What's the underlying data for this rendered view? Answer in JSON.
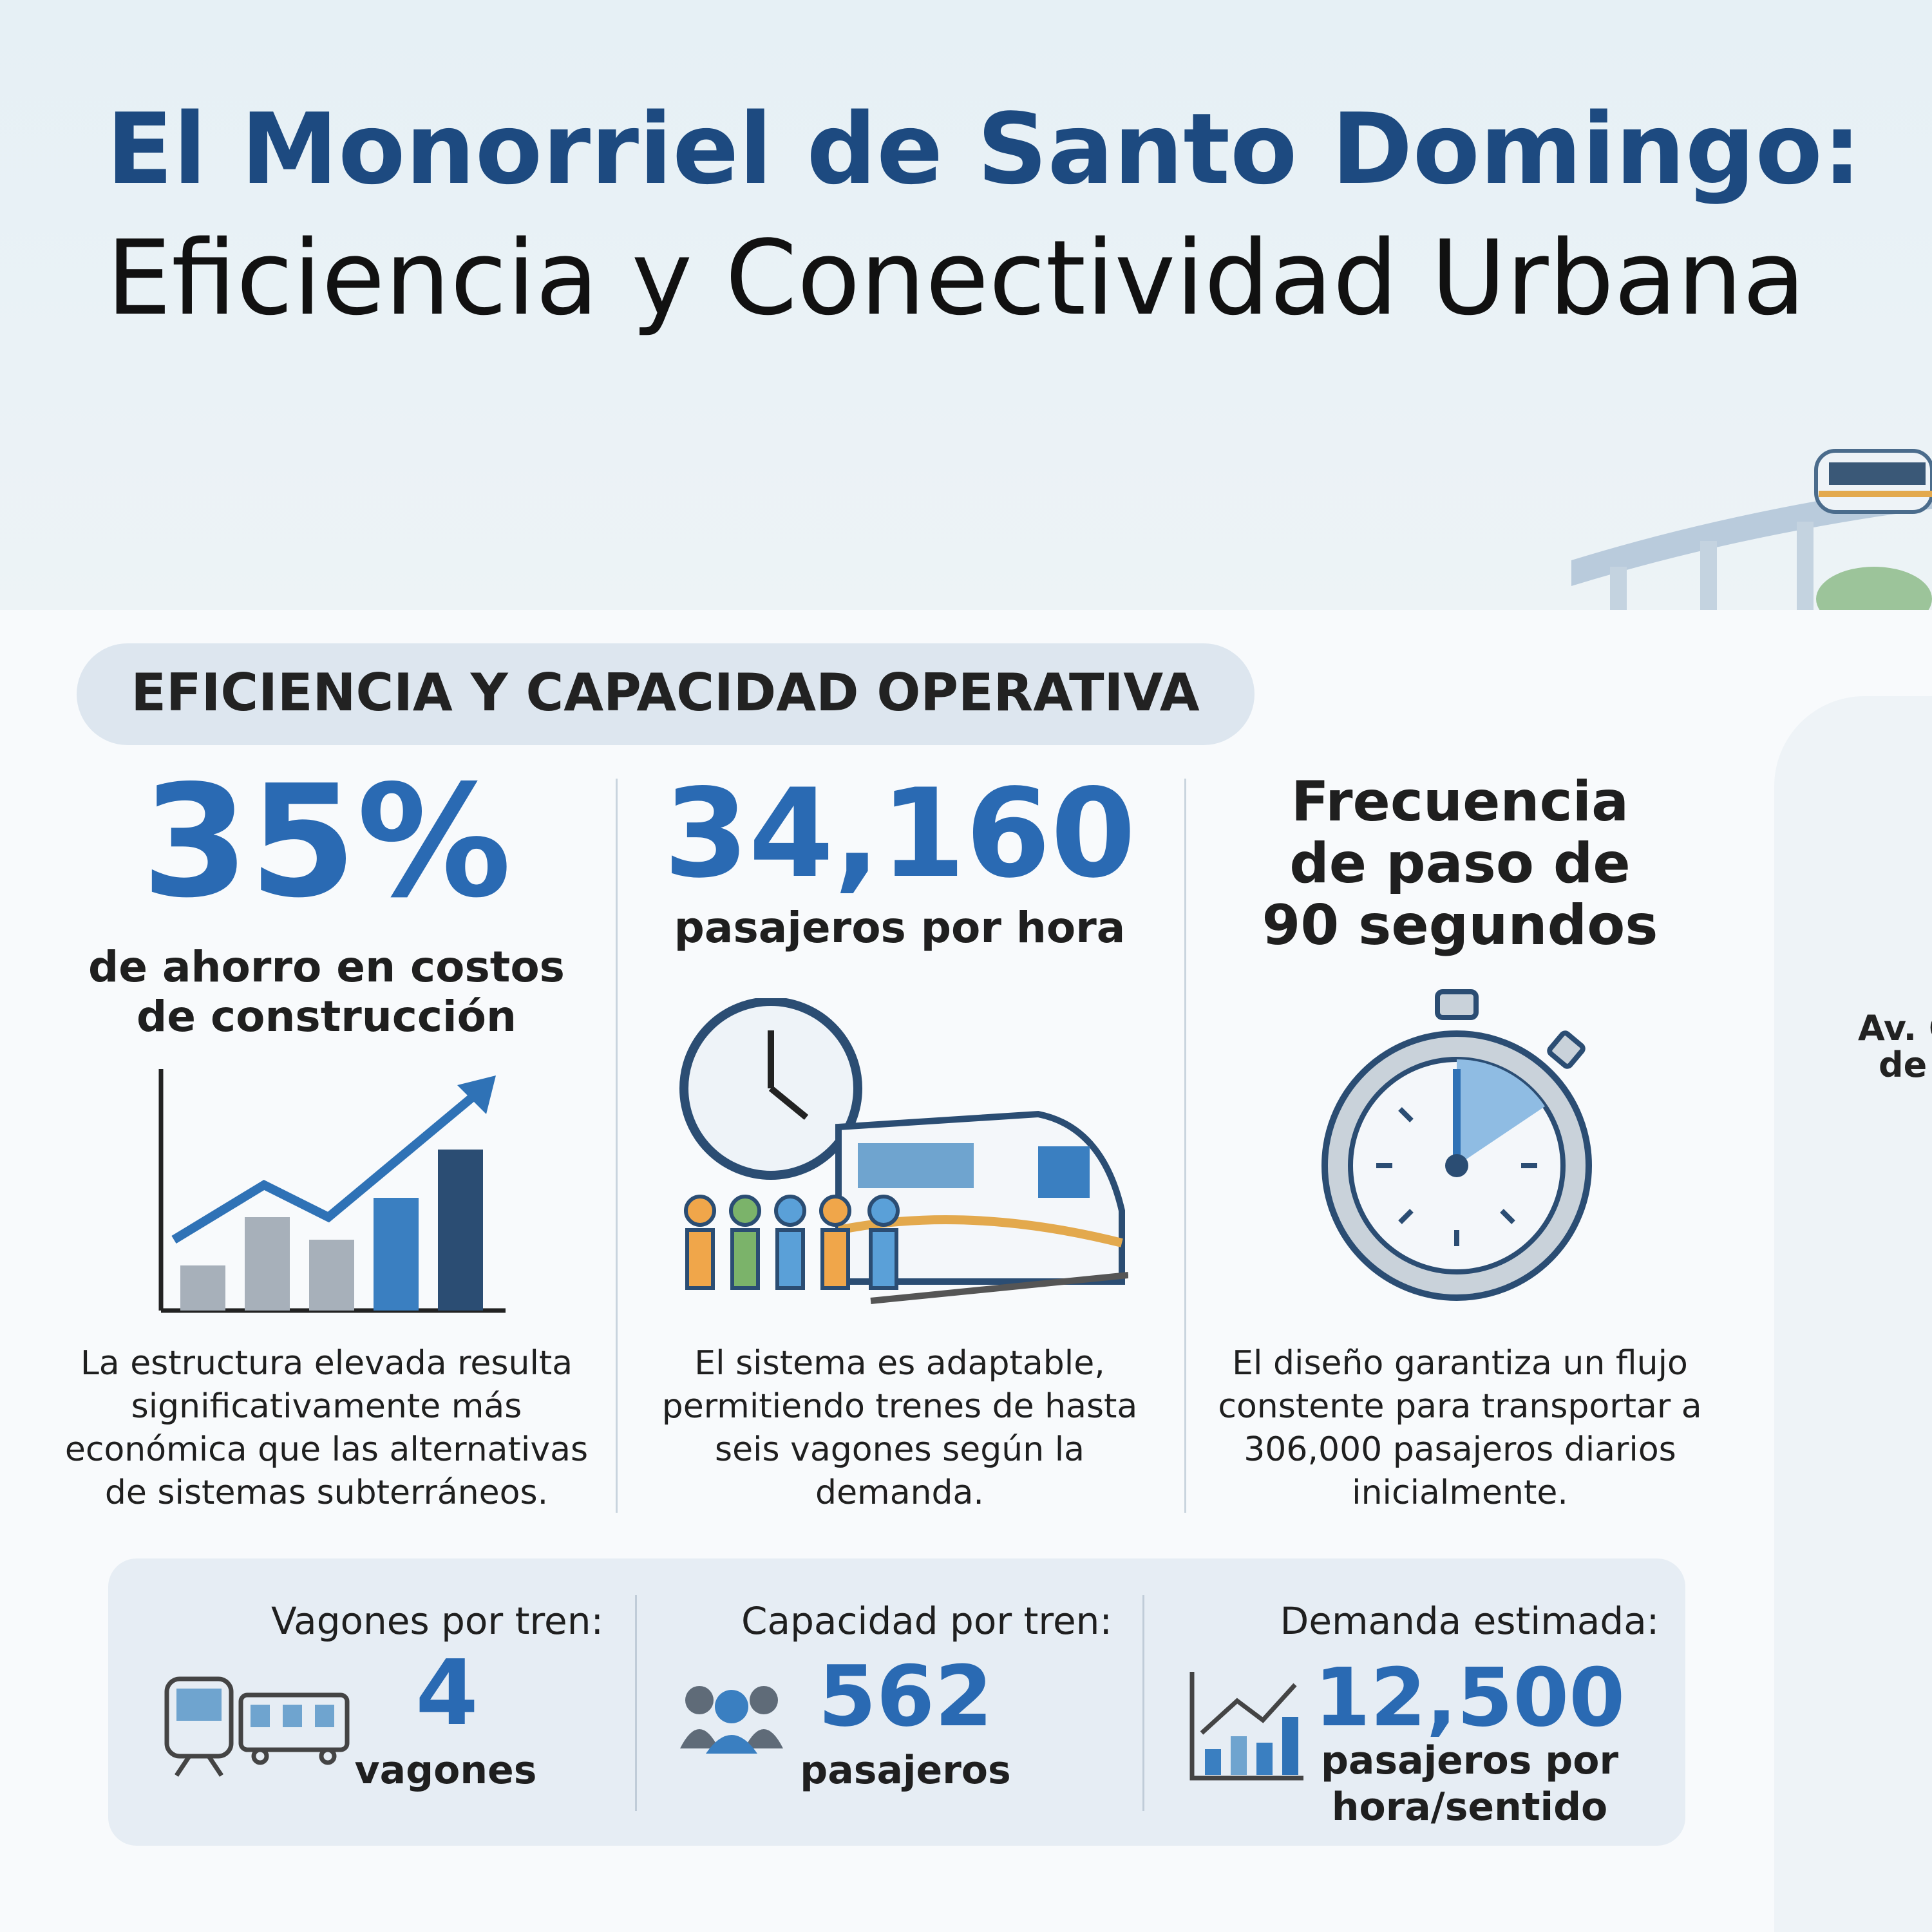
{
  "header": {
    "title": "El Monorriel de Santo Domingo:",
    "subtitle": "Eficiencia y Conectividad Urbana"
  },
  "section": {
    "title": "EFICIENCIA Y CAPACIDAD OPERATIVA"
  },
  "stats": [
    {
      "value": "35%",
      "label_lines": [
        "de ahorro en costos",
        "de construcción"
      ],
      "description_lines": [
        "La estructura elevada resulta",
        "significativamente más",
        "económica que las alternativas",
        "de sistemas subterráneos."
      ]
    },
    {
      "value": "34,160",
      "label_lines": [
        "pasajeros por hora"
      ],
      "description_lines": [
        "El sistema es adaptable,",
        "permitiendo trenes de hasta",
        "seis vagones según la",
        "demanda."
      ]
    },
    {
      "heading_lines": [
        "Frecuencia",
        "de paso de",
        "90 segundos"
      ],
      "description_lines": [
        "El diseño garantiza un flujo",
        "constente para transportar a",
        "306,000 pasajeros diarios",
        "inicialmente."
      ]
    }
  ],
  "specs": [
    {
      "label": "Vagones por tren:",
      "value": "4",
      "unit_lines": [
        "vagones"
      ]
    },
    {
      "label": "Capacidad por tren:",
      "value": "562",
      "unit_lines": [
        "pasajeros"
      ]
    },
    {
      "label": "Demanda estimada:",
      "value": "12,500",
      "unit_lines": [
        "pasajeros por",
        "hora/sentido"
      ]
    }
  ],
  "side_panel": {
    "lines": [
      "Av. C",
      "de"
    ]
  }
}
